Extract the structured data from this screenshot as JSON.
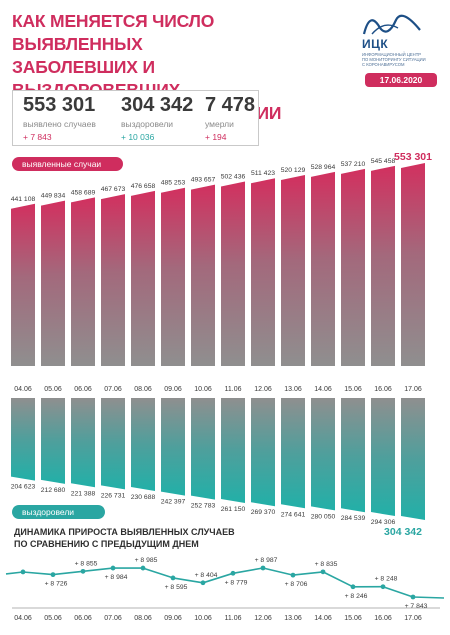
{
  "header": {
    "title_lines": [
      "КАК МЕНЯЕТСЯ ЧИСЛО ВЫЯВЛЕННЫХ",
      "ЗАБОЛЕВШИХ И ВЫЗДОРОВЕВШИХ",
      "ОТ КОРОНАВИРУСА В РОССИИ"
    ],
    "date": "17.06.2020"
  },
  "logo": {
    "name": "ИЦК",
    "subtitle_lines": [
      "ИНФОРМАЦИОННЫЙ ЦЕНТР",
      "ПО МОНИТОРИНГУ СИТУАЦИИ",
      "С КОРОНАВИРУСОМ"
    ]
  },
  "stats": [
    {
      "value": "553 301",
      "label": "выявлено случаев",
      "delta": "+ 7 843",
      "color": "#cf2d5e"
    },
    {
      "value": "304 342",
      "label": "выздоровели",
      "delta": "+ 10 036",
      "color": "#2aa6a2"
    },
    {
      "value": "7 478",
      "label": "умерли",
      "delta": "+ 194",
      "color": "#cf2d5e"
    }
  ],
  "colors": {
    "accent": "#cf2d5e",
    "teal": "#2aa6a2",
    "gray_bar": "#8e8e8e"
  },
  "chart_data": [
    {
      "type": "bar",
      "title": "выявленные случаи",
      "categories": [
        "04.06",
        "05.06",
        "06.06",
        "07.06",
        "08.06",
        "09.06",
        "10.06",
        "11.06",
        "12.06",
        "13.06",
        "14.06",
        "15.06",
        "16.06",
        "17.06"
      ],
      "values": [
        441108,
        449834,
        458689,
        467673,
        476658,
        485253,
        493657,
        502436,
        511423,
        520129,
        528964,
        537210,
        545458,
        553301
      ],
      "labels": [
        "441 108",
        "449 834",
        "458 689",
        "467 673",
        "476 658",
        "485 253",
        "493 657",
        "502 436",
        "511 423",
        "520 129",
        "528 964",
        "537 210",
        "545 458",
        "553 301"
      ]
    },
    {
      "type": "bar",
      "title": "выздоровели",
      "categories": [
        "04.06",
        "05.06",
        "06.06",
        "07.06",
        "08.06",
        "09.06",
        "10.06",
        "11.06",
        "12.06",
        "13.06",
        "14.06",
        "15.06",
        "16.06",
        "17.06"
      ],
      "values": [
        204623,
        212680,
        221388,
        226731,
        230688,
        242397,
        252783,
        261150,
        269370,
        274641,
        280050,
        284539,
        294306,
        304342
      ],
      "labels": [
        "204 623",
        "212 680",
        "221 388",
        "226 731",
        "230 688",
        "242 397",
        "252 783",
        "261 150",
        "269 370",
        "274 641",
        "280 050",
        "284 539",
        "294 306",
        "304 342"
      ]
    },
    {
      "type": "line",
      "title_lines": [
        "ДИНАМИКА ПРИРОСТА ВЫЯВЛЕННЫХ СЛУЧАЕВ",
        "ПО СРАВНЕНИЮ С ПРЕДЫДУЩИМ ДНЕМ"
      ],
      "categories": [
        "04.06",
        "05.06",
        "06.06",
        "07.06",
        "08.06",
        "09.06",
        "10.06",
        "11.06",
        "12.06",
        "13.06",
        "14.06",
        "15.06",
        "16.06",
        "17.06"
      ],
      "values": [
        8831,
        8726,
        8855,
        8984,
        8985,
        8595,
        8404,
        8779,
        8987,
        8706,
        8835,
        8246,
        8248,
        7843
      ],
      "labels": [
        "",
        "+ 8 726",
        "+ 8 855",
        "+ 8 984",
        "+ 8 985",
        "+ 8 595",
        "+ 8 404",
        "+ 8 779",
        "+ 8 987",
        "+ 8 706",
        "+ 8 835",
        "+ 8 246",
        "+ 8 248",
        "+ 7 843"
      ]
    }
  ]
}
